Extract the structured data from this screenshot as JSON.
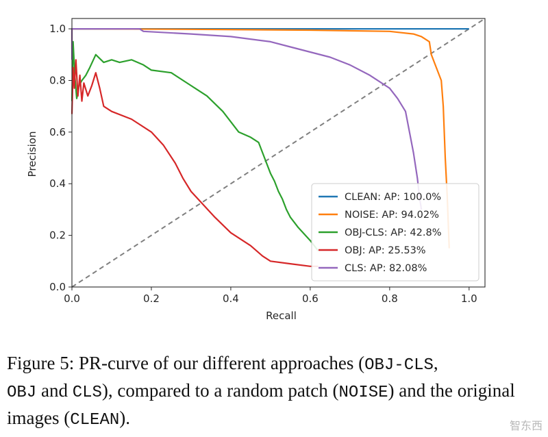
{
  "chart_data": {
    "type": "line",
    "xlabel": "Recall",
    "ylabel": "Precision",
    "xlim": [
      0.0,
      1.04
    ],
    "ylim": [
      0.0,
      1.04
    ],
    "xticks": [
      "0.0",
      "0.2",
      "0.4",
      "0.6",
      "0.8",
      "1.0"
    ],
    "yticks": [
      "0.0",
      "0.2",
      "0.4",
      "0.6",
      "0.8",
      "1.0"
    ],
    "legend_position": "lower-right",
    "series": [
      {
        "name": "CLEAN: AP: 100.0%",
        "color": "#1f77b4",
        "x": [
          0.0,
          1.0
        ],
        "y": [
          1.0,
          1.0
        ]
      },
      {
        "name": "NOISE: AP: 94.02%",
        "color": "#ff7f0e",
        "x": [
          0.0,
          0.0,
          0.01,
          0.3,
          0.6,
          0.8,
          0.86,
          0.88,
          0.9,
          0.905,
          0.91,
          0.93,
          0.935,
          0.94,
          0.945,
          0.95
        ],
        "y": [
          0.92,
          1.0,
          1.0,
          0.998,
          0.995,
          0.99,
          0.98,
          0.97,
          0.95,
          0.9,
          0.88,
          0.8,
          0.7,
          0.5,
          0.35,
          0.15
        ]
      },
      {
        "name": "OBJ-CLS: AP: 42.8%",
        "color": "#2ca02c",
        "x": [
          0.0,
          0.003,
          0.007,
          0.012,
          0.018,
          0.025,
          0.035,
          0.045,
          0.06,
          0.08,
          0.1,
          0.12,
          0.15,
          0.18,
          0.2,
          0.25,
          0.3,
          0.34,
          0.38,
          0.42,
          0.45,
          0.47,
          0.48,
          0.49,
          0.5,
          0.51,
          0.52,
          0.53,
          0.54,
          0.55,
          0.57,
          0.6,
          0.62
        ],
        "y": [
          0.72,
          0.95,
          0.82,
          0.73,
          0.78,
          0.8,
          0.82,
          0.85,
          0.9,
          0.87,
          0.88,
          0.87,
          0.88,
          0.86,
          0.84,
          0.83,
          0.78,
          0.74,
          0.68,
          0.6,
          0.58,
          0.56,
          0.52,
          0.48,
          0.44,
          0.41,
          0.37,
          0.34,
          0.3,
          0.27,
          0.23,
          0.18,
          0.14
        ]
      },
      {
        "name": "OBJ: AP: 25.53%",
        "color": "#d62728",
        "x": [
          0.0,
          0.003,
          0.006,
          0.01,
          0.015,
          0.02,
          0.025,
          0.03,
          0.04,
          0.05,
          0.06,
          0.07,
          0.08,
          0.1,
          0.15,
          0.2,
          0.23,
          0.26,
          0.28,
          0.3,
          0.33,
          0.36,
          0.4,
          0.45,
          0.48,
          0.5,
          0.55,
          0.6,
          0.62
        ],
        "y": [
          0.67,
          0.85,
          0.77,
          0.88,
          0.74,
          0.82,
          0.72,
          0.79,
          0.74,
          0.78,
          0.83,
          0.77,
          0.7,
          0.68,
          0.65,
          0.6,
          0.55,
          0.48,
          0.42,
          0.37,
          0.32,
          0.27,
          0.21,
          0.16,
          0.12,
          0.1,
          0.09,
          0.08,
          0.08
        ]
      },
      {
        "name": "CLS: AP: 82.08%",
        "color": "#9467bd",
        "x": [
          0.0,
          0.0,
          0.17,
          0.18,
          0.3,
          0.4,
          0.5,
          0.55,
          0.6,
          0.65,
          0.7,
          0.75,
          0.8,
          0.82,
          0.84,
          0.85,
          0.86,
          0.87,
          0.875,
          0.88
        ],
        "y": [
          0.88,
          1.0,
          1.0,
          0.99,
          0.98,
          0.97,
          0.95,
          0.93,
          0.91,
          0.89,
          0.86,
          0.82,
          0.77,
          0.73,
          0.68,
          0.6,
          0.52,
          0.42,
          0.35,
          0.3
        ]
      }
    ],
    "reference_line": {
      "x": [
        0.0,
        1.04
      ],
      "y": [
        0.0,
        1.04
      ],
      "color": "#7f7f7f",
      "style": "dashed"
    }
  },
  "caption": {
    "p1": "Figure 5: PR-curve of our different approaches (",
    "m1": "OBJ-CLS",
    "p2": ",",
    "m2": "OBJ",
    "p3": " and ",
    "m3": "CLS",
    "p4": "), compared to a random patch (",
    "m4": "NOISE",
    "p5": ") and the original images (",
    "m5": "CLEAN",
    "p6": ")."
  },
  "watermark": "智东西"
}
